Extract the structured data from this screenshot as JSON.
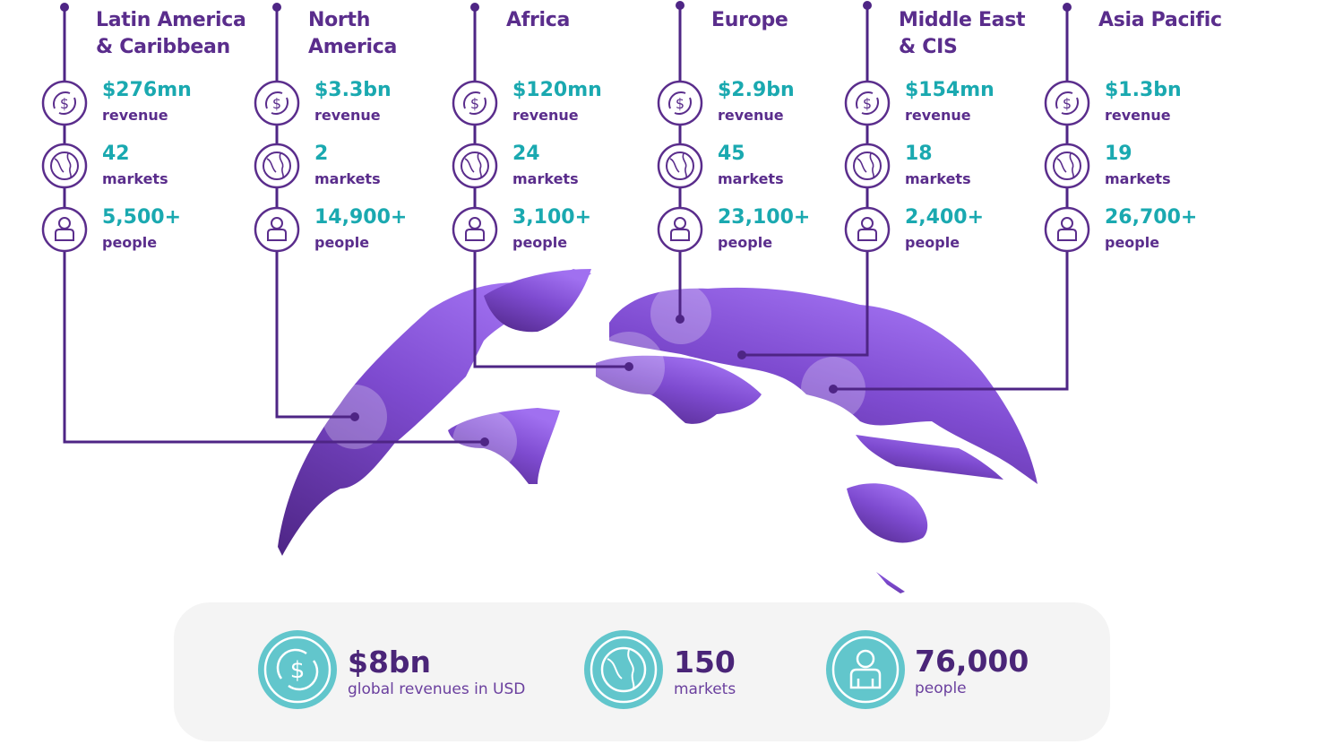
{
  "regions": [
    {
      "name": "Latin America\n& Caribbean",
      "revenue": "$276mn",
      "revenue_label": "revenue",
      "markets": "42",
      "markets_label": "markets",
      "people": "5,500+",
      "people_label": "people"
    },
    {
      "name": "North\nAmerica",
      "revenue": "$3.3bn",
      "revenue_label": "revenue",
      "markets": "2",
      "markets_label": "markets",
      "people": "14,900+",
      "people_label": "people"
    },
    {
      "name": "Africa",
      "revenue": "$120mn",
      "revenue_label": "revenue",
      "markets": "24",
      "markets_label": "markets",
      "people": "3,100+",
      "people_label": "people"
    },
    {
      "name": "Europe",
      "revenue": "$2.9bn",
      "revenue_label": "revenue",
      "markets": "45",
      "markets_label": "markets",
      "people": "23,100+",
      "people_label": "people"
    },
    {
      "name": "Middle East\n& CIS",
      "revenue": "$154mn",
      "revenue_label": "revenue",
      "markets": "18",
      "markets_label": "markets",
      "people": "2,400+",
      "people_label": "people"
    },
    {
      "name": "Asia Pacific",
      "revenue": "$1.3bn",
      "revenue_label": "revenue",
      "markets": "19",
      "markets_label": "markets",
      "people": "26,700+",
      "people_label": "people"
    }
  ],
  "totals": {
    "revenue": {
      "value": "$8bn",
      "label": "global revenues in USD",
      "icon": "dollar-cycle-icon"
    },
    "markets": {
      "value": "150",
      "label": "markets",
      "icon": "globe-icon"
    },
    "people": {
      "value": "76,000",
      "label": "people",
      "icon": "person-icon"
    }
  },
  "colors": {
    "purple": "#5a2d8c",
    "teal": "#1aa9b0",
    "teal_circle": "#62c6cc",
    "card": "#f4f4f4",
    "map_light": "#9b6ce8",
    "map_dark": "#4e2585"
  }
}
